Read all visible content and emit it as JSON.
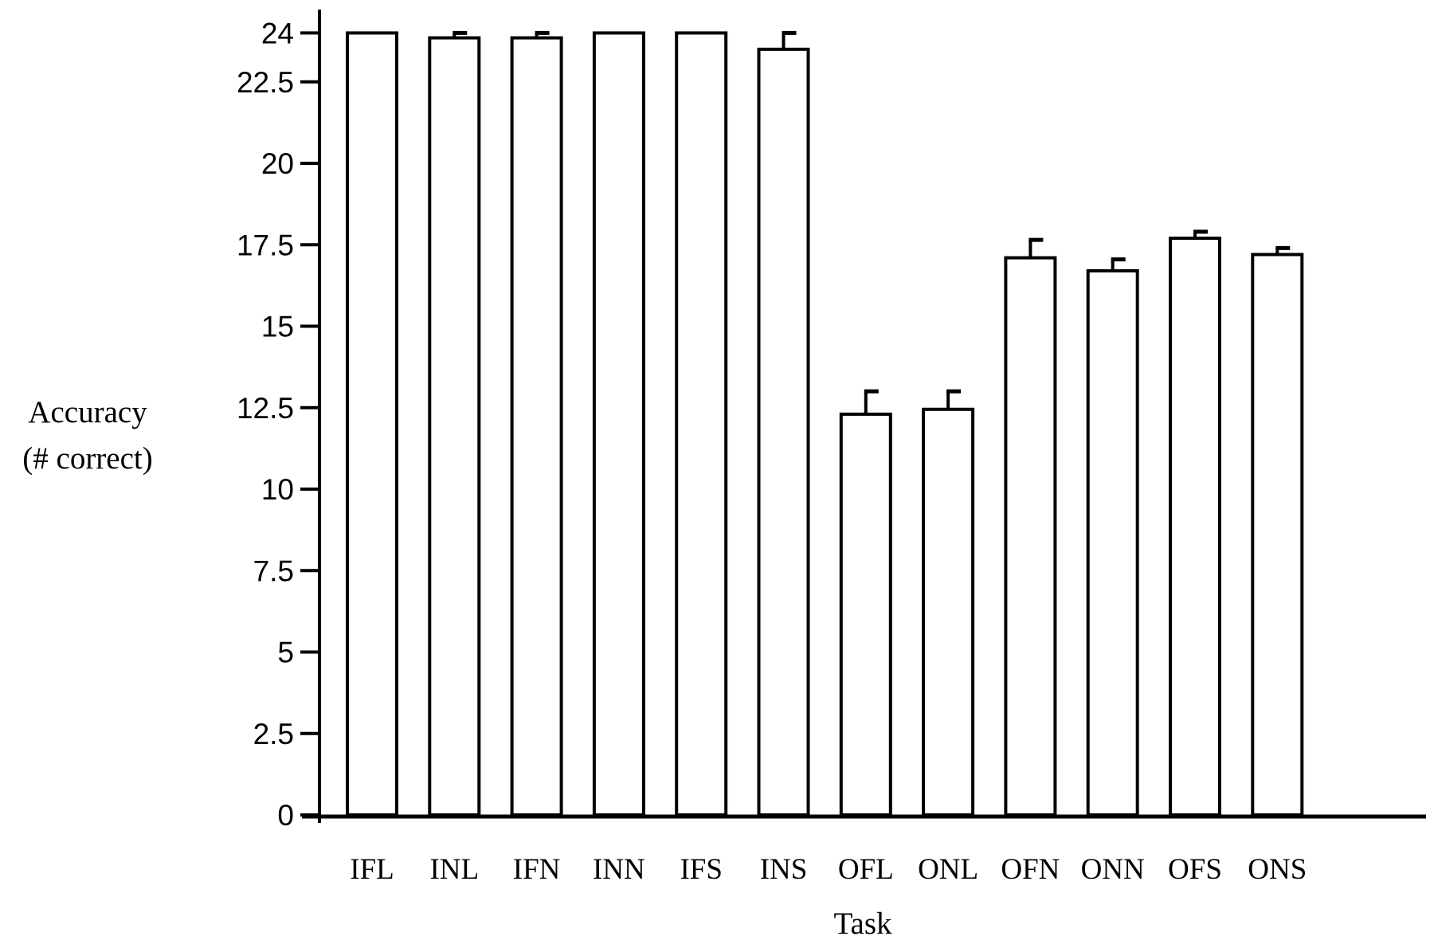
{
  "chart_data": {
    "type": "bar",
    "title": "",
    "xlabel": "Task",
    "ylabel_lines": [
      "Accuracy",
      "(# correct)"
    ],
    "categories": [
      "IFL",
      "INL",
      "IFN",
      "INN",
      "IFS",
      "INS",
      "OFL",
      "ONL",
      "OFN",
      "ONN",
      "OFS",
      "ONS"
    ],
    "values": [
      24,
      23.85,
      23.85,
      24,
      24,
      23.5,
      12.3,
      12.45,
      17.1,
      16.7,
      17.7,
      17.2
    ],
    "errors": [
      0,
      0.15,
      0.15,
      0,
      0,
      0.5,
      0.7,
      0.55,
      0.55,
      0.35,
      0.2,
      0.2
    ],
    "yticks": [
      "0",
      "2.5",
      "5",
      "7.5",
      "10",
      "12.5",
      "15",
      "17.5",
      "20",
      "22.5",
      "24"
    ],
    "ylim": [
      0,
      25
    ],
    "grid": false,
    "legend": "none",
    "bar_color": "#ffffff",
    "edge_color": "#000000"
  }
}
